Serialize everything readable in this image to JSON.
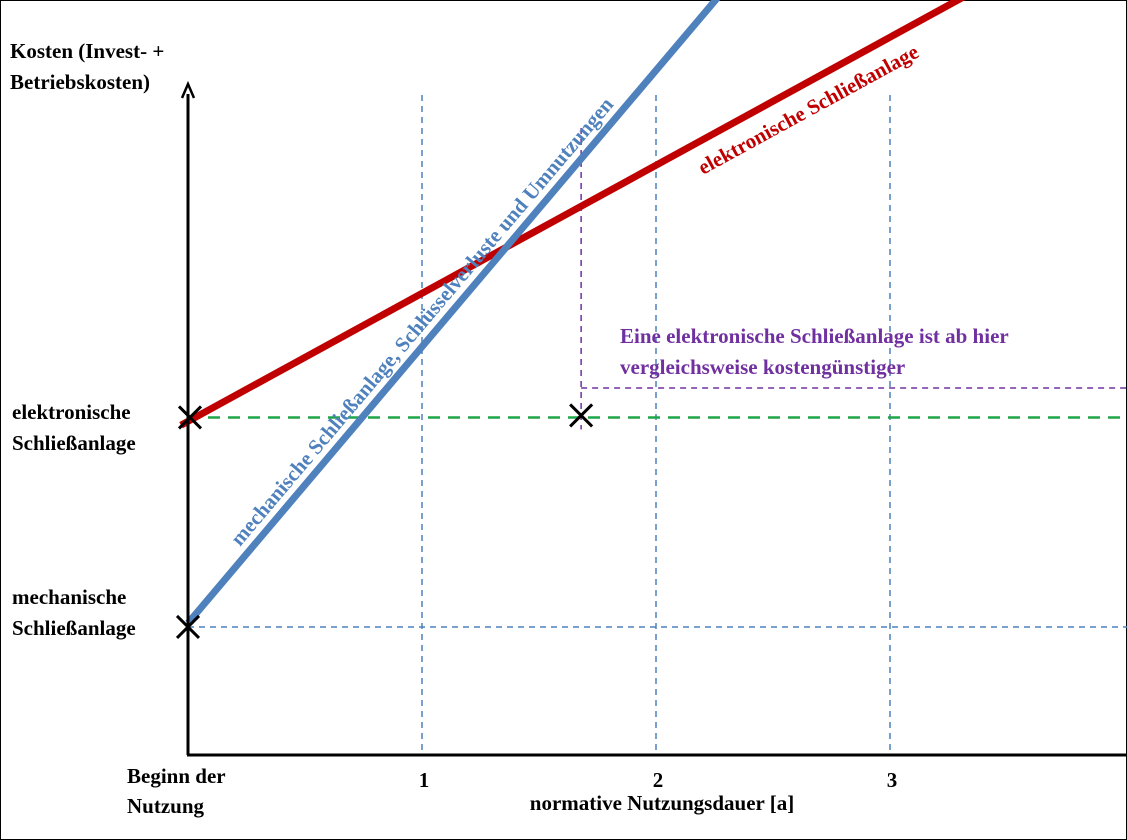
{
  "chart_data": {
    "type": "line",
    "ylabel": [
      "Kosten (Invest- +",
      "Betriebskosten)"
    ],
    "xlabel": "normative Nutzungsdauer [a]",
    "x_start_label": [
      "Beginn der",
      "Nutzung"
    ],
    "x_ticks": [
      {
        "value": 1,
        "label": "1"
      },
      {
        "value": 2,
        "label": "2"
      },
      {
        "value": 3,
        "label": "3"
      }
    ],
    "y_levels": [
      {
        "value": 0.87,
        "label": [
          "elektronische",
          "Schließanlage"
        ]
      },
      {
        "value": 0.33,
        "label": [
          "mechanische",
          "Schließanlage"
        ]
      }
    ],
    "series": [
      {
        "name": "elektronische Schließanlage",
        "color": "#c00000",
        "points": [
          [
            -0.03,
            0.85
          ],
          [
            4.0,
            2.18
          ]
        ]
      },
      {
        "name": "mechanische Schließanlage, Schlüsselverluste und Umnutzungen",
        "color": "#4f81bd",
        "points": [
          [
            0,
            0.34
          ],
          [
            2.85,
            2.37
          ]
        ]
      }
    ],
    "break_even": {
      "x": 1.68,
      "y": 0.87,
      "annotation": [
        "Eine elektronische Schließanlage ist ab hier",
        "vergleichsweise kostengünstiger"
      ]
    },
    "colors": {
      "axis": "#000000",
      "grid": "#4f81bd",
      "baseline": "#1fa548",
      "annotation": "#7030a0"
    },
    "xlim": [
      0,
      4.0
    ],
    "ylim": [
      0,
      2.2
    ]
  }
}
